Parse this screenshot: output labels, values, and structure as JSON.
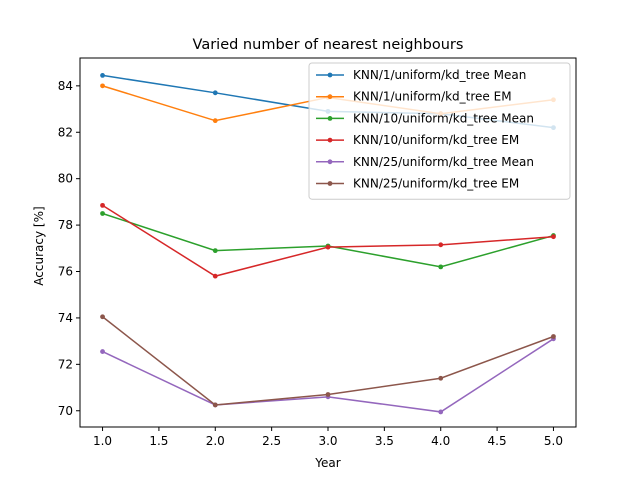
{
  "chart_data": {
    "type": "line",
    "title": "Varied number of nearest neighbours",
    "xlabel": "Year",
    "ylabel": "Accuracy [%]",
    "xlim": [
      0.8,
      5.2
    ],
    "ylim": [
      69.3,
      85.2
    ],
    "xticks": [
      "1.0",
      "1.5",
      "2.0",
      "2.5",
      "3.0",
      "3.5",
      "4.0",
      "4.5",
      "5.0"
    ],
    "yticks": [
      "70",
      "72",
      "74",
      "76",
      "78",
      "80",
      "82",
      "84"
    ],
    "grid": false,
    "legend_position": "top-right",
    "x": [
      1,
      2,
      3,
      4,
      5
    ],
    "series": [
      {
        "name": "KNN/1/uniform/kd_tree Mean",
        "color": "#1f77b4",
        "values": [
          84.45,
          83.7,
          82.9,
          82.8,
          82.2
        ]
      },
      {
        "name": "KNN/1/uniform/kd_tree EM",
        "color": "#ff7f0e",
        "values": [
          84.0,
          82.5,
          83.5,
          82.8,
          83.4
        ]
      },
      {
        "name": "KNN/10/uniform/kd_tree Mean",
        "color": "#2ca02c",
        "values": [
          78.5,
          76.9,
          77.1,
          76.2,
          77.55
        ]
      },
      {
        "name": "KNN/10/uniform/kd_tree EM",
        "color": "#d62728",
        "values": [
          78.85,
          75.8,
          77.05,
          77.15,
          77.5
        ]
      },
      {
        "name": "KNN/25/uniform/kd_tree Mean",
        "color": "#9467bd",
        "values": [
          72.55,
          70.25,
          70.6,
          69.95,
          73.1
        ]
      },
      {
        "name": "KNN/25/uniform/kd_tree EM",
        "color": "#8c564b",
        "values": [
          74.05,
          70.25,
          70.7,
          71.4,
          73.2
        ]
      }
    ]
  }
}
